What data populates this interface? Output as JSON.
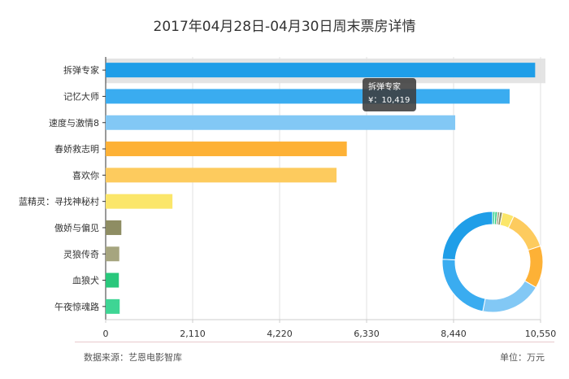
{
  "chart_data": {
    "type": "bar",
    "orientation": "horizontal",
    "title": "2017年04月28日-04月30日周末票房详情",
    "categories": [
      "拆弹专家",
      "记忆大师",
      "速度与激情8",
      "春娇救志明",
      "喜欢你",
      "蓝精灵：寻找神秘村",
      "傲娇与偏见",
      "灵狼传奇",
      "血狼犬",
      "午夜惊魂路"
    ],
    "values": [
      10419,
      9800,
      8480,
      5850,
      5600,
      1620,
      380,
      330,
      320,
      340
    ],
    "colors": [
      "#1f9ee8",
      "#3aacf0",
      "#82c8f5",
      "#fdb136",
      "#fdcb5e",
      "#fbe66a",
      "#8e8d63",
      "#a6a57f",
      "#29c87c",
      "#3ed594"
    ],
    "xlim": [
      0,
      10550
    ],
    "xticks": [
      "0",
      "2,110",
      "4,220",
      "6,330",
      "8,440",
      "10,550"
    ],
    "xtick_values": [
      0,
      2110,
      4220,
      6330,
      8440,
      10550
    ],
    "grid": true,
    "highlight_index": 0,
    "tooltip": {
      "name": "拆弹专家",
      "value_text": "¥：10,419"
    },
    "inset": {
      "type": "donut"
    }
  },
  "footer": {
    "source": "数据来源：艺恩电影智库",
    "unit": "单位：万元"
  }
}
